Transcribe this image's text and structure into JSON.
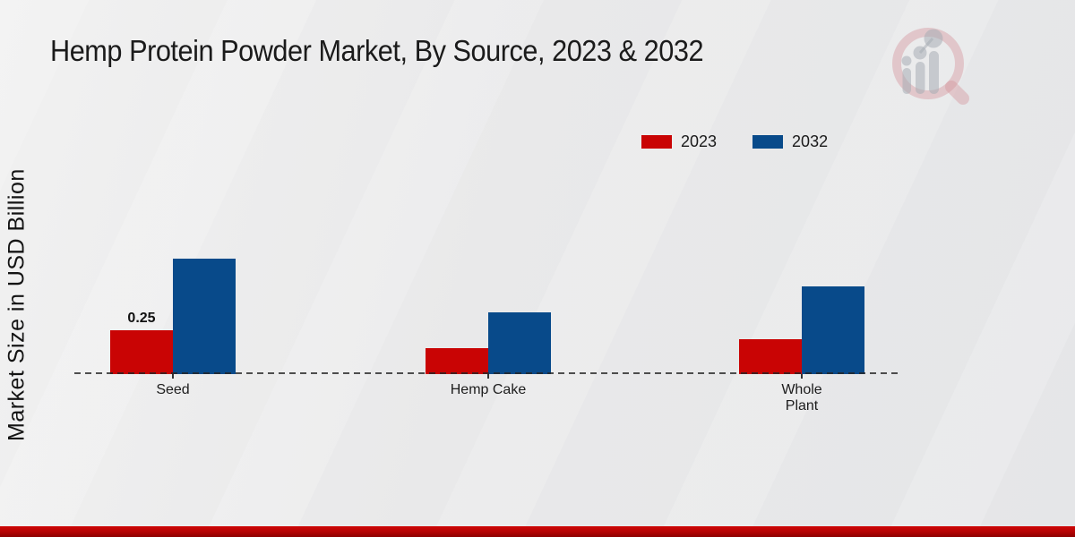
{
  "page": {
    "title": "Hemp Protein Powder Market, By Source, 2023 & 2032",
    "y_axis_label": "Market Size in USD Billion",
    "watermark_name": "market-research-future-logo"
  },
  "chart_data": {
    "type": "bar",
    "title": "Hemp Protein Powder Market, By Source, 2023 & 2032",
    "xlabel": "",
    "ylabel": "Market Size in USD Billion",
    "unit": "USD Billion",
    "categories": [
      "Seed",
      "Hemp Cake",
      "Whole\nPlant"
    ],
    "series": [
      {
        "name": "2023",
        "color": "#c90404",
        "values": [
          0.25,
          0.15,
          0.2
        ]
      },
      {
        "name": "2032",
        "color": "#084a8a",
        "values": [
          0.66,
          0.35,
          0.5
        ]
      }
    ],
    "data_labels": [
      {
        "series_index": 0,
        "category_index": 0,
        "text": "0.25"
      }
    ],
    "ylim": [
      0,
      0.9
    ],
    "grid": false,
    "y_ticks_visible": false,
    "legend_position": "top-right",
    "baseline_style": "dashed"
  },
  "colors": {
    "accent_red": "#c90404",
    "accent_blue": "#084a8a",
    "footer_bar": "#b30303",
    "background": "#e9e9ea",
    "title_text": "#1b1b1b"
  }
}
